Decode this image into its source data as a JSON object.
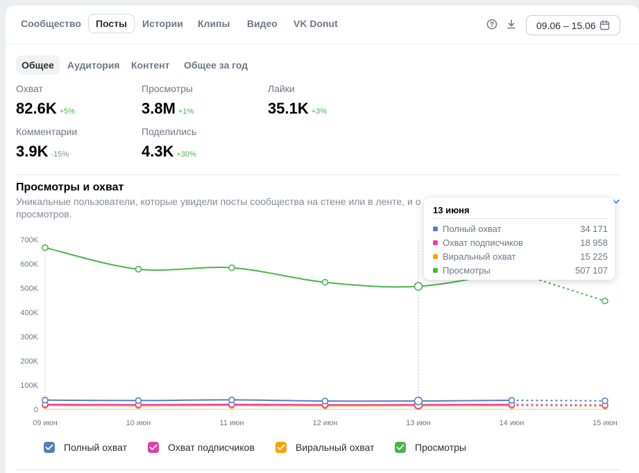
{
  "top_tabs": [
    "Сообщество",
    "Посты",
    "Истории",
    "Клипы",
    "Видео",
    "VK Donut"
  ],
  "date_range": "09.06 – 15.06",
  "sub_tabs": [
    "Общее",
    "Аудитория",
    "Контент",
    "Общее за год"
  ],
  "metrics": [
    {
      "label": "Охват",
      "value": "82.6K",
      "change": "+5%"
    },
    {
      "label": "Просмотры",
      "value": "3.8M",
      "change": "+1%"
    },
    {
      "label": "Лайки",
      "value": "35.1K",
      "change": "+3%"
    },
    {
      "label": "Комментарии",
      "value": "3.9K",
      "change": "-15%"
    },
    {
      "label": "Поделились",
      "value": "4.3K",
      "change": "+30%"
    }
  ],
  "chart_section": {
    "title": "Просмотры и охват",
    "description": "Уникальные пользователи, которые увидели посты сообщества на стене или в ленте, и о",
    "description_line2": "просмотров."
  },
  "tooltip": {
    "title": "13 июня",
    "rows": [
      {
        "name": "Полный охват",
        "value": "34 171"
      },
      {
        "name": "Охват подписчиков",
        "value": "18 958"
      },
      {
        "name": "Виральный охват",
        "value": "15 225"
      },
      {
        "name": "Просмотры",
        "value": "507 107"
      }
    ]
  },
  "colors": {
    "full_reach": "#5181b8",
    "subscribers_reach": "#e03fab",
    "viral_reach": "#ffa000",
    "views": "#4bb34b",
    "accent": "#2688eb"
  },
  "chart_data": {
    "type": "line",
    "x": [
      "09 июн",
      "10 июн",
      "11 июн",
      "12 июн",
      "13 июн",
      "14 июн",
      "15 июн"
    ],
    "y_ticks": [
      "0",
      "100K",
      "200K",
      "300K",
      "400K",
      "500K",
      "600K",
      "700K"
    ],
    "ylim": [
      0,
      700000
    ],
    "series": [
      {
        "name": "Полный охват",
        "color": "#5181b8",
        "values": [
          38000,
          36000,
          39000,
          34000,
          34171,
          37000,
          35000
        ]
      },
      {
        "name": "Охват подписчиков",
        "color": "#e03fab",
        "values": [
          20000,
          19000,
          20000,
          18500,
          18958,
          19500,
          17000
        ]
      },
      {
        "name": "Виральный охват",
        "color": "#ffa000",
        "values": [
          16000,
          15000,
          16000,
          14500,
          15225,
          15500,
          14000
        ]
      },
      {
        "name": "Просмотры",
        "color": "#4bb34b",
        "values": [
          667000,
          578000,
          584000,
          524000,
          507107,
          570000,
          447000
        ]
      }
    ],
    "hover_index": 4,
    "dashed_last_segment": true
  }
}
